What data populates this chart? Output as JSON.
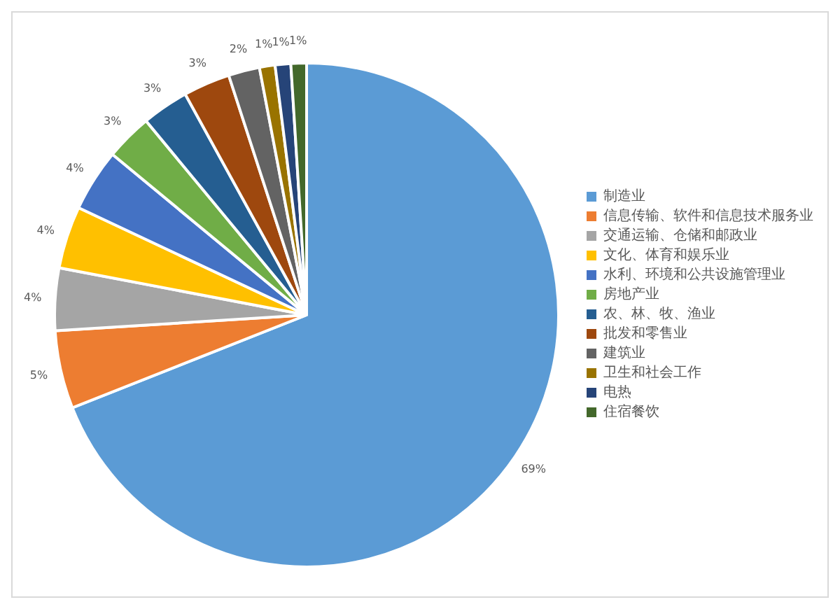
{
  "chart_data": {
    "type": "pie",
    "categories": [
      "制造业",
      "信息传输、软件和信息技术服务业",
      "交通运输、仓储和邮政业",
      "文化、体育和娱乐业",
      "水利、环境和公共设施管理业",
      "房地产业",
      "农、林、牧、渔业",
      "批发和零售业",
      "建筑业",
      "卫生和社会工作",
      "电热",
      "住宿餐饮"
    ],
    "values": [
      69,
      5,
      4,
      4,
      4,
      3,
      3,
      3,
      2,
      1,
      1,
      1
    ],
    "value_labels": [
      "69%",
      "5%",
      "4%",
      "4%",
      "4%",
      "3%",
      "3%",
      "3%",
      "2%",
      "1%",
      "1%",
      "1%"
    ],
    "colors": [
      "#5b9bd5",
      "#ed7d31",
      "#a5a5a5",
      "#ffc000",
      "#4472c4",
      "#70ad47",
      "#255e91",
      "#9e480e",
      "#636363",
      "#997300",
      "#264478",
      "#43682b"
    ],
    "legend": "right"
  }
}
